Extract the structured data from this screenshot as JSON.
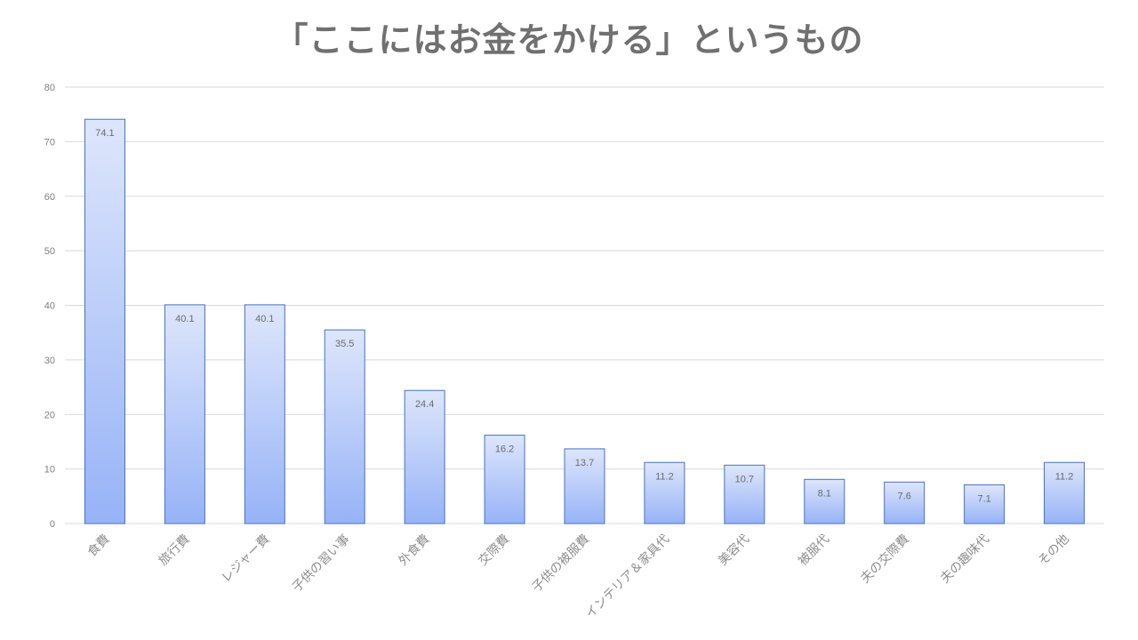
{
  "chart_data": {
    "type": "bar",
    "title": "「ここにはお金をかける」というもの",
    "categories": [
      "食費",
      "旅行費",
      "レジャー費",
      "子供の習い事",
      "外食費",
      "交際費",
      "子供の被服費",
      "インテリア＆家具代",
      "美容代",
      "被服代",
      "夫の交際費",
      "夫の趣味代",
      "その他"
    ],
    "series": [
      {
        "values": [
          74.1,
          40.1,
          40.1,
          35.5,
          24.4,
          16.2,
          13.7,
          11.2,
          10.7,
          8.1,
          7.6,
          7.1,
          11.2
        ],
        "data_labels": [
          "74.1",
          "40.1",
          "40.1",
          "35.5",
          "24.4",
          "16.2",
          "13.7",
          "11.2",
          "10.7",
          "8.1",
          "7.6",
          "7.1",
          "11.2"
        ]
      }
    ],
    "xlabel": "",
    "ylabel": "",
    "ylim": [
      0,
      80
    ],
    "yticks": [
      "0",
      "10",
      "20",
      "30",
      "40",
      "50",
      "60",
      "70",
      "80"
    ],
    "grid": true,
    "legend": "none",
    "colors": {
      "bar_fill_top": "#dde6fb",
      "bar_fill_bottom": "#97b3f7",
      "bar_border": "#4472c4",
      "gridline": "#d9d9d9",
      "title": "#707070"
    }
  }
}
